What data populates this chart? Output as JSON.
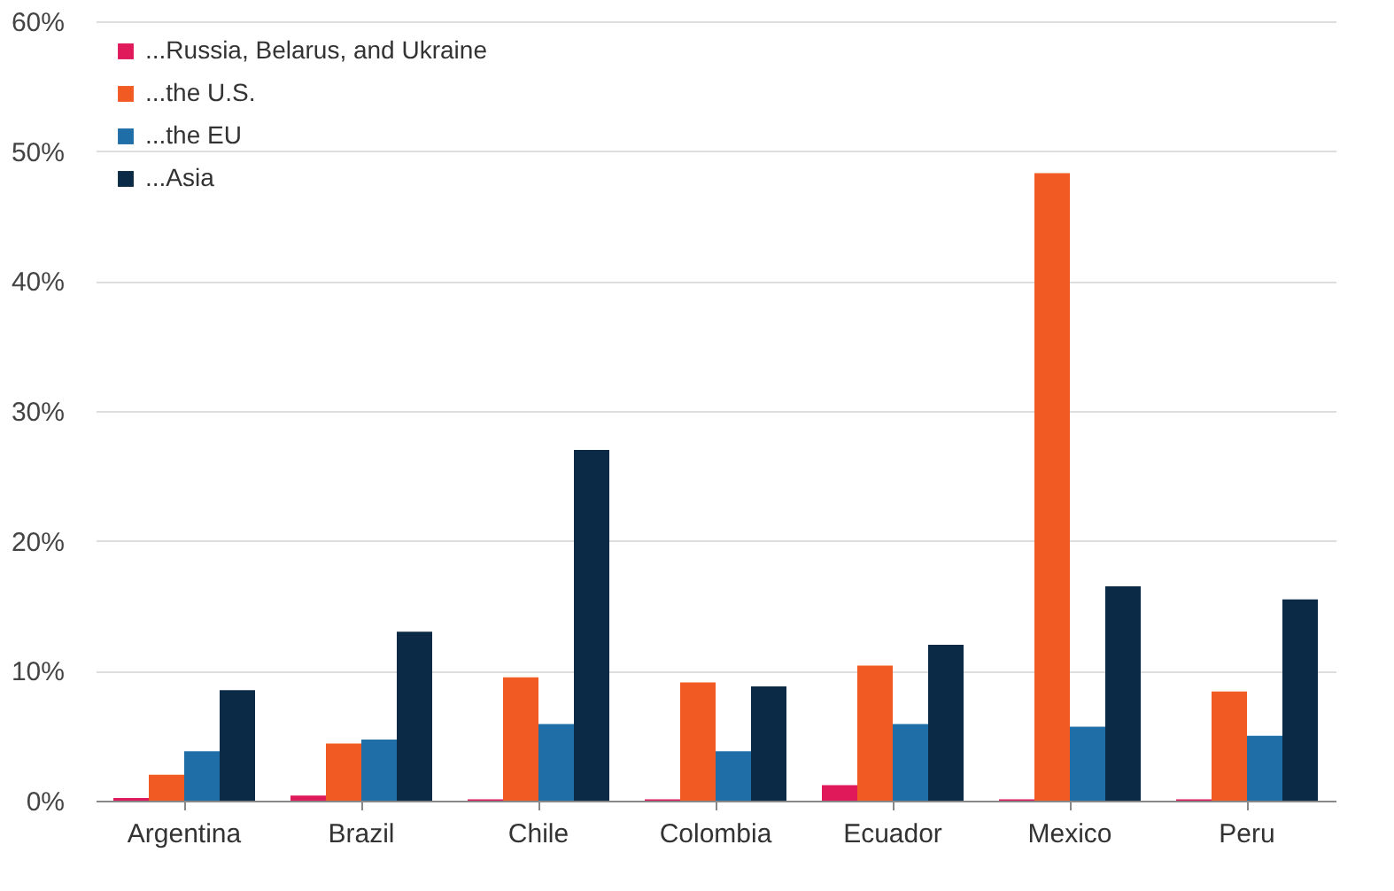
{
  "chart_data": {
    "type": "bar",
    "categories": [
      "Argentina",
      "Brazil",
      "Chile",
      "Colombia",
      "Ecuador",
      "Mexico",
      "Peru"
    ],
    "series": [
      {
        "name": "...Russia, Belarus, and Ukraine",
        "color": "#e0195a",
        "values": [
          0.2,
          0.4,
          0.1,
          0.1,
          1.2,
          0.1,
          0.1
        ]
      },
      {
        "name": "...the U.S.",
        "color": "#f15a22",
        "values": [
          2.0,
          4.4,
          9.5,
          9.1,
          10.4,
          48.3,
          8.4
        ]
      },
      {
        "name": "...the EU",
        "color": "#1f6ea8",
        "values": [
          3.8,
          4.7,
          5.9,
          3.8,
          5.9,
          5.7,
          5.0
        ]
      },
      {
        "name": "...Asia",
        "color": "#0b2a45",
        "values": [
          8.5,
          13.0,
          27.0,
          8.8,
          12.0,
          16.5,
          15.5
        ]
      }
    ],
    "ylim": [
      0,
      60
    ],
    "yticks": [
      {
        "value": 0,
        "label": "0%"
      },
      {
        "value": 10,
        "label": "10%"
      },
      {
        "value": 20,
        "label": "20%"
      },
      {
        "value": 30,
        "label": "30%"
      },
      {
        "value": 40,
        "label": "40%"
      },
      {
        "value": 50,
        "label": "50%"
      },
      {
        "value": 60,
        "label": "60%"
      }
    ],
    "grid": "y",
    "legend": "top left"
  }
}
